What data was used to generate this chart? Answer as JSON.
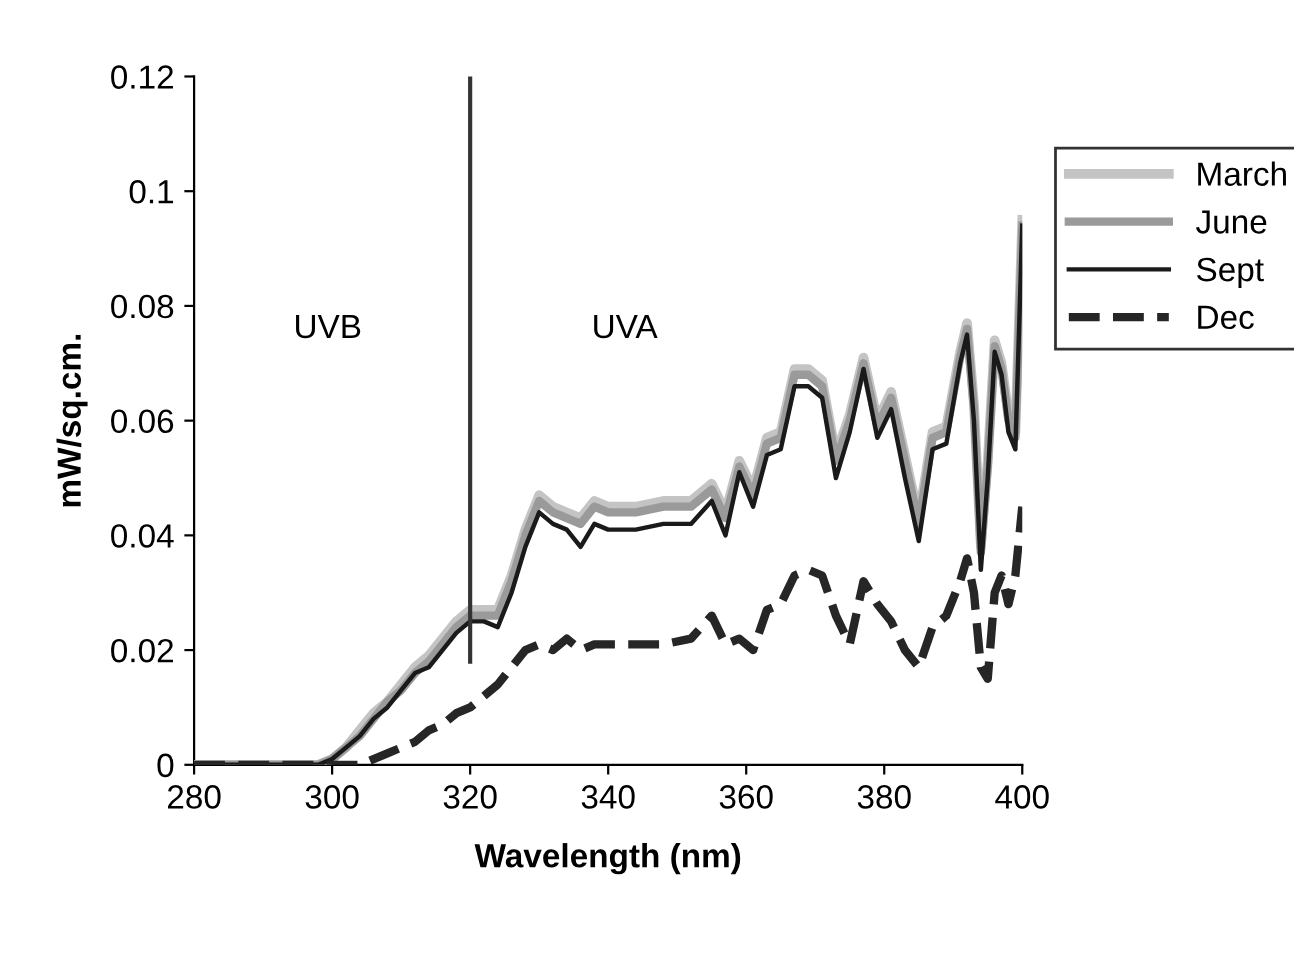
{
  "chart_data": {
    "type": "line",
    "xlabel": "Wavelength (nm)",
    "ylabel": "mW/sq.cm.",
    "x": [
      280,
      290,
      298,
      300,
      302,
      304,
      306,
      308,
      310,
      312,
      314,
      316,
      318,
      320,
      322,
      324,
      326,
      328,
      330,
      332,
      334,
      336,
      338,
      340,
      344,
      348,
      352,
      355,
      357,
      359,
      361,
      363,
      365,
      367,
      369,
      371,
      373,
      375,
      377,
      379,
      381,
      383,
      385,
      387,
      389,
      391,
      392,
      393,
      394,
      395,
      396,
      397,
      398,
      399,
      400
    ],
    "series": [
      {
        "name": "March",
        "color": "#c4c4c4",
        "line_style": "solid",
        "values": [
          0,
          0,
          0,
          0.001,
          0.003,
          0.006,
          0.009,
          0.011,
          0.014,
          0.017,
          0.019,
          0.022,
          0.025,
          0.027,
          0.027,
          0.027,
          0.033,
          0.041,
          0.047,
          0.045,
          0.044,
          0.043,
          0.046,
          0.045,
          0.045,
          0.046,
          0.046,
          0.049,
          0.044,
          0.053,
          0.048,
          0.057,
          0.058,
          0.069,
          0.069,
          0.067,
          0.054,
          0.061,
          0.071,
          0.06,
          0.065,
          0.054,
          0.043,
          0.058,
          0.059,
          0.072,
          0.077,
          0.063,
          0.038,
          0.053,
          0.074,
          0.07,
          0.061,
          0.058,
          0.095
        ]
      },
      {
        "name": "June",
        "color": "#9a9a9a",
        "line_style": "solid",
        "values": [
          0,
          0,
          0,
          0.001,
          0.003,
          0.005,
          0.008,
          0.011,
          0.013,
          0.016,
          0.018,
          0.021,
          0.024,
          0.026,
          0.026,
          0.026,
          0.032,
          0.04,
          0.046,
          0.044,
          0.043,
          0.042,
          0.045,
          0.044,
          0.044,
          0.045,
          0.045,
          0.048,
          0.043,
          0.052,
          0.047,
          0.056,
          0.057,
          0.068,
          0.068,
          0.066,
          0.053,
          0.06,
          0.07,
          0.059,
          0.064,
          0.053,
          0.042,
          0.057,
          0.058,
          0.071,
          0.076,
          0.062,
          0.037,
          0.052,
          0.073,
          0.069,
          0.06,
          0.057,
          0.094
        ]
      },
      {
        "name": "Sept",
        "color": "#1a1a1a",
        "line_style": "solid",
        "values": [
          0,
          0,
          0,
          0.001,
          0.003,
          0.005,
          0.008,
          0.01,
          0.013,
          0.016,
          0.017,
          0.02,
          0.023,
          0.025,
          0.025,
          0.024,
          0.03,
          0.038,
          0.044,
          0.042,
          0.041,
          0.038,
          0.042,
          0.041,
          0.041,
          0.042,
          0.042,
          0.046,
          0.04,
          0.051,
          0.045,
          0.054,
          0.055,
          0.066,
          0.066,
          0.064,
          0.05,
          0.058,
          0.069,
          0.057,
          0.062,
          0.05,
          0.039,
          0.055,
          0.056,
          0.07,
          0.075,
          0.06,
          0.034,
          0.05,
          0.072,
          0.068,
          0.058,
          0.055,
          0.094
        ]
      },
      {
        "name": "Dec",
        "color": "#262626",
        "line_style": "dashed",
        "values": [
          0,
          0,
          0,
          0,
          0,
          0,
          0.001,
          0.002,
          0.003,
          0.004,
          0.006,
          0.007,
          0.009,
          0.01,
          0.012,
          0.014,
          0.017,
          0.02,
          0.021,
          0.02,
          0.022,
          0.02,
          0.021,
          0.021,
          0.021,
          0.021,
          0.022,
          0.026,
          0.021,
          0.022,
          0.02,
          0.027,
          0.028,
          0.033,
          0.034,
          0.033,
          0.026,
          0.021,
          0.032,
          0.028,
          0.025,
          0.02,
          0.017,
          0.024,
          0.026,
          0.032,
          0.036,
          0.03,
          0.017,
          0.015,
          0.03,
          0.033,
          0.028,
          0.033,
          0.045
        ]
      }
    ],
    "xlim": [
      280,
      400
    ],
    "xticks": [
      280,
      300,
      320,
      340,
      360,
      380,
      400
    ],
    "ylim": [
      0,
      0.12
    ],
    "yticks": [
      0,
      0.02,
      0.04,
      0.06,
      0.08,
      0.1,
      0.12
    ],
    "ref_lines": [
      {
        "axis": "x",
        "value": 320,
        "color": "#333333"
      }
    ],
    "annotations": [
      "UVB",
      "UVA"
    ],
    "grid": false,
    "legend": "right",
    "marker": "none"
  }
}
